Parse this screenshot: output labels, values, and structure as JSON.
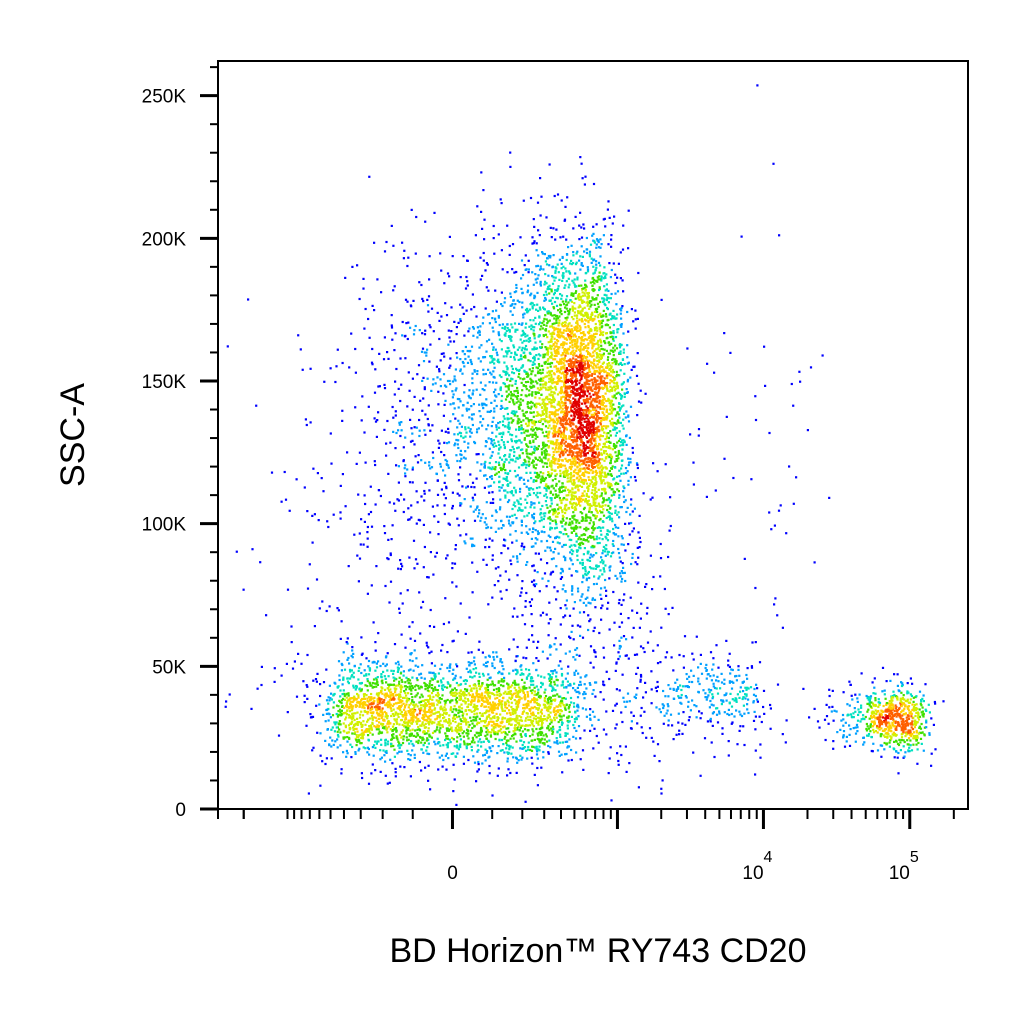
{
  "chart_data": {
    "type": "scatter",
    "title": "",
    "xlabel": "BD Horizon™ RY743 CD20",
    "ylabel": "SSC-A",
    "x_scale": "biexponential",
    "xlim": [
      -3000,
      250000
    ],
    "ylim": [
      0,
      262144
    ],
    "y_ticks": [
      {
        "value": 0,
        "label": "0"
      },
      {
        "value": 50000,
        "label": "50K"
      },
      {
        "value": 100000,
        "label": "100K"
      },
      {
        "value": 150000,
        "label": "150K"
      },
      {
        "value": 200000,
        "label": "200K"
      },
      {
        "value": 250000,
        "label": "250K"
      }
    ],
    "x_ticks": [
      {
        "value": 0,
        "label": "0",
        "sup": ""
      },
      {
        "value": 10000,
        "label": "10",
        "sup": "4"
      },
      {
        "value": 100000,
        "label": "10",
        "sup": "5"
      }
    ],
    "color_scale": "pseudocolor density (blue → cyan → green → yellow → red)",
    "colors": [
      "#0000ff",
      "#00a0ff",
      "#00e0c0",
      "#40e000",
      "#d0f000",
      "#ffd000",
      "#ff6000",
      "#e00000"
    ],
    "grid": false,
    "legend": "none",
    "populations": [
      {
        "cd20_center": 0,
        "cd20_spread": 230,
        "ssc_center": 35000,
        "ssc_spread": 9000,
        "events": 2600
      },
      {
        "cd20_center": 420,
        "cd20_spread": 300,
        "ssc_center": 140000,
        "ssc_spread": 28000,
        "events": 5200
      },
      {
        "cd20_center": 550,
        "cd20_spread": 750,
        "ssc_center": 80000,
        "ssc_spread": 38000,
        "events": 500
      },
      {
        "cd20_center": 3500,
        "cd20_spread": 3200,
        "ssc_center": 40000,
        "ssc_spread": 9000,
        "events": 380
      },
      {
        "cd20_center": 75000,
        "cd20_spread": 26000,
        "ssc_center": 32000,
        "ssc_spread": 5500,
        "events": 650
      },
      {
        "cd20_center": 5000,
        "cd20_spread": 9000,
        "ssc_center": 120000,
        "ssc_spread": 50000,
        "events": 90
      }
    ]
  }
}
